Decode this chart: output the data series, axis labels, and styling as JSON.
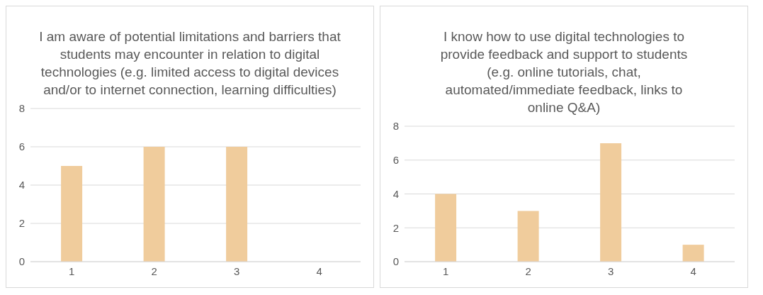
{
  "chart_data": [
    {
      "type": "bar",
      "title": "I am aware of potential limitations and barriers that students may encounter in relation to digital technologies (e.g. limited access to digital devices and/or to internet connection, learning difficulties)",
      "categories": [
        "1",
        "2",
        "3",
        "4"
      ],
      "values": [
        5,
        6,
        6,
        0
      ],
      "color": "#f0cc9c",
      "ylim": [
        0,
        8
      ],
      "yticks": [
        0,
        2,
        4,
        6,
        8
      ],
      "grid": "y",
      "legend": false
    },
    {
      "type": "bar",
      "title": "I know how to use digital technologies to provide feedback and support to students (e.g. online tutorials, chat, automated/immediate feedback, links to online Q&A)",
      "categories": [
        "1",
        "2",
        "3",
        "4"
      ],
      "values": [
        4,
        3,
        7,
        1
      ],
      "color": "#f0cc9c",
      "ylim": [
        0,
        8
      ],
      "yticks": [
        0,
        2,
        4,
        6,
        8
      ],
      "grid": "y",
      "legend": false
    }
  ]
}
